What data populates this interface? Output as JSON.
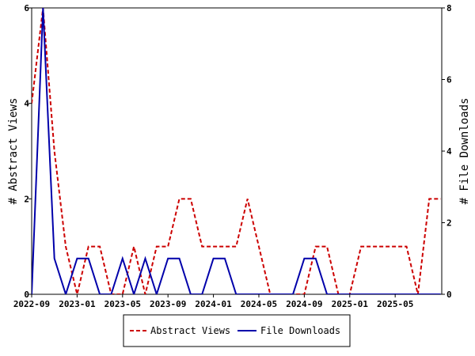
{
  "chart_data": {
    "type": "line",
    "x_tick_labels": [
      "2022-09",
      "2023-01",
      "2023-05",
      "2023-09",
      "2024-01",
      "2024-05",
      "2024-09",
      "2025-01",
      "2025-05"
    ],
    "x_range": [
      "2022-09",
      "2025-08"
    ],
    "y_left": {
      "label": "# Abstract Views",
      "ticks": [
        "0",
        "2",
        "4",
        "6"
      ],
      "lim": [
        0,
        6
      ]
    },
    "y_right": {
      "label": "# File Downloads",
      "ticks": [
        "0",
        "2",
        "4",
        "6",
        "8"
      ],
      "lim": [
        0,
        8
      ]
    },
    "grid": false,
    "legend_position": "bottom-center",
    "series": [
      {
        "name": "Abstract Views",
        "axis": "left",
        "color": "#cc0000",
        "dash": "dashed",
        "points": [
          [
            "2022-09",
            4
          ],
          [
            "2022-10",
            6
          ],
          [
            "2022-11",
            3
          ],
          [
            "2022-12",
            1
          ],
          [
            "2023-01",
            0
          ],
          [
            "2023-02",
            1
          ],
          [
            "2023-03",
            1
          ],
          [
            "2023-04",
            0
          ],
          [
            "2023-05",
            0
          ],
          [
            "2023-06",
            1
          ],
          [
            "2023-07",
            0
          ],
          [
            "2023-08",
            1
          ],
          [
            "2023-09",
            1
          ],
          [
            "2023-10",
            2
          ],
          [
            "2023-11",
            2
          ],
          [
            "2023-12",
            1
          ],
          [
            "2024-01",
            1
          ],
          [
            "2024-02",
            1
          ],
          [
            "2024-03",
            1
          ],
          [
            "2024-04",
            2
          ],
          [
            "2024-05",
            1
          ],
          [
            "2024-06",
            0
          ],
          [
            "2024-07",
            0
          ],
          [
            "2024-08",
            0
          ],
          [
            "2024-09",
            0
          ],
          [
            "2024-10",
            1
          ],
          [
            "2024-11",
            1
          ],
          [
            "2024-12",
            0
          ],
          [
            "2025-01",
            0
          ],
          [
            "2025-02",
            1
          ],
          [
            "2025-03",
            1
          ],
          [
            "2025-04",
            1
          ],
          [
            "2025-05",
            1
          ],
          [
            "2025-06",
            1
          ],
          [
            "2025-07",
            0
          ],
          [
            "2025-08",
            2
          ],
          [
            "2025-09",
            2
          ]
        ]
      },
      {
        "name": "File Downloads",
        "axis": "right",
        "color": "#0000aa",
        "dash": "solid",
        "points": [
          [
            "2022-09",
            0
          ],
          [
            "2022-10",
            8
          ],
          [
            "2022-11",
            1
          ],
          [
            "2022-12",
            0
          ],
          [
            "2023-01",
            1
          ],
          [
            "2023-02",
            1
          ],
          [
            "2023-03",
            0
          ],
          [
            "2023-04",
            0
          ],
          [
            "2023-05",
            1
          ],
          [
            "2023-06",
            0
          ],
          [
            "2023-07",
            1
          ],
          [
            "2023-08",
            0
          ],
          [
            "2023-09",
            1
          ],
          [
            "2023-10",
            1
          ],
          [
            "2023-11",
            0
          ],
          [
            "2023-12",
            0
          ],
          [
            "2024-01",
            1
          ],
          [
            "2024-02",
            1
          ],
          [
            "2024-03",
            0
          ],
          [
            "2024-04",
            0
          ],
          [
            "2024-05",
            0
          ],
          [
            "2024-06",
            0
          ],
          [
            "2024-07",
            0
          ],
          [
            "2024-08",
            0
          ],
          [
            "2024-09",
            1
          ],
          [
            "2024-10",
            1
          ],
          [
            "2024-11",
            0
          ],
          [
            "2024-12",
            0
          ],
          [
            "2025-01",
            0
          ],
          [
            "2025-02",
            0
          ],
          [
            "2025-03",
            0
          ],
          [
            "2025-04",
            0
          ],
          [
            "2025-05",
            0
          ],
          [
            "2025-06",
            0
          ],
          [
            "2025-07",
            0
          ],
          [
            "2025-08",
            0
          ],
          [
            "2025-09",
            0
          ]
        ]
      }
    ]
  }
}
